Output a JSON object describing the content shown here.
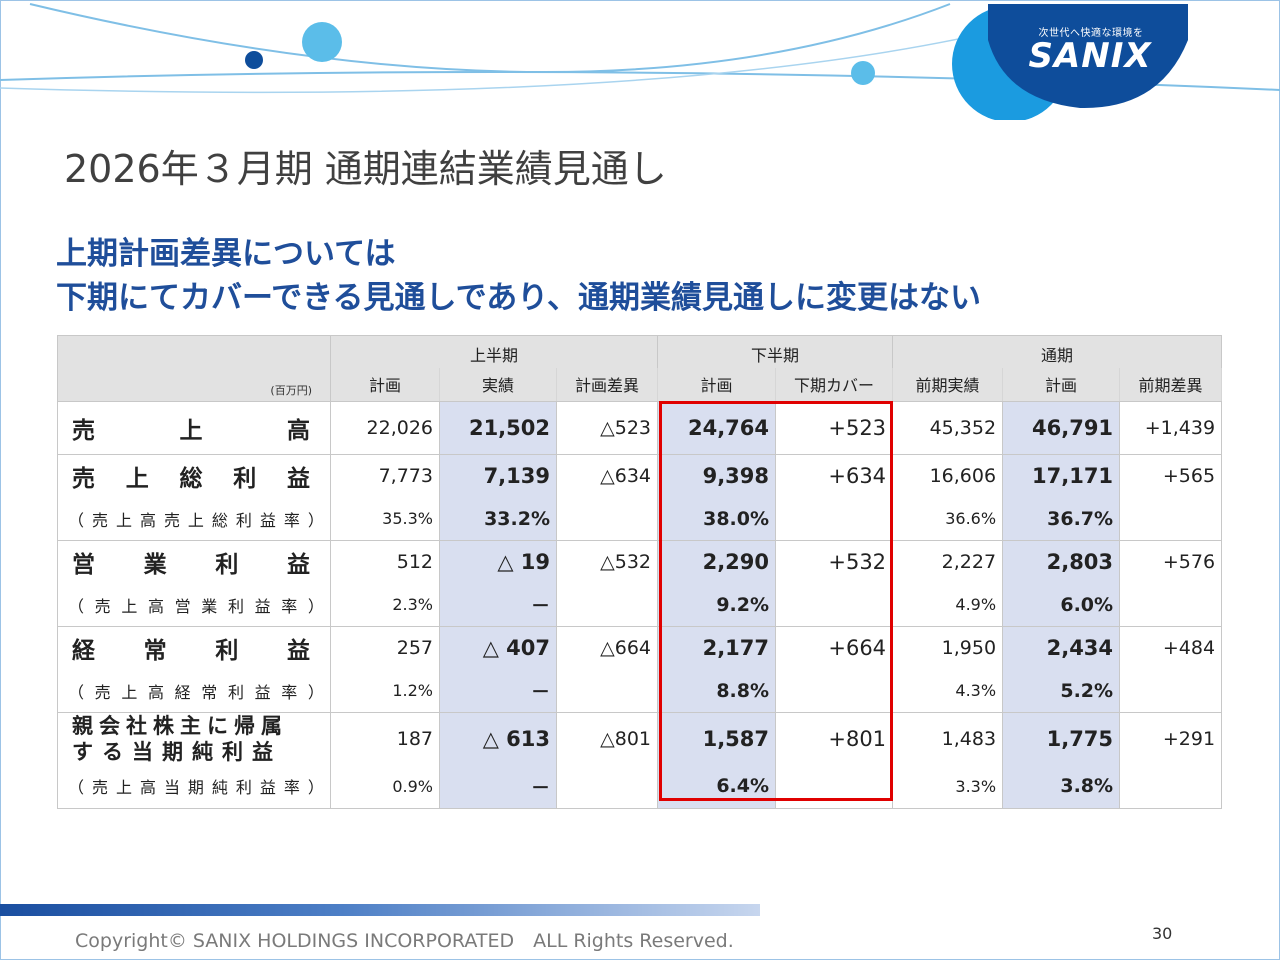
{
  "logo": {
    "tagline": "次世代へ快適な環境を",
    "text": "SANIX"
  },
  "title": "2026年３月期 通期連結業績見通し",
  "headline": {
    "line1": "上期計画差異については",
    "line2": "下期にてカバーできる見通しであり、通期業績見通しに変更はない"
  },
  "table": {
    "unit": "(百万円)",
    "groups": [
      "上半期",
      "下半期",
      "通期"
    ],
    "subheaders": [
      "計画",
      "実績",
      "計画差異",
      "計画",
      "下期カバー",
      "前期実績",
      "計画",
      "前期差異"
    ],
    "rows": [
      {
        "label_chars": [
          "売",
          "上",
          "高"
        ],
        "values": [
          "22,026",
          "21,502",
          "△523",
          "24,764",
          "+523",
          "45,352",
          "46,791",
          "+1,439"
        ]
      },
      {
        "label_chars": [
          "売",
          "上",
          "総",
          "利",
          "益"
        ],
        "values": [
          "7,773",
          "7,139",
          "△634",
          "9,398",
          "+634",
          "16,606",
          "17,171",
          "+565"
        ],
        "rate_label": "（売上高売上総利益率）",
        "rates": [
          "35.3%",
          "33.2%",
          "",
          "38.0%",
          "",
          "36.6%",
          "36.7%",
          ""
        ]
      },
      {
        "label_chars": [
          "営",
          "業",
          "利",
          "益"
        ],
        "values": [
          "512",
          "△ 19",
          "△532",
          "2,290",
          "+532",
          "2,227",
          "2,803",
          "+576"
        ],
        "rate_label": "（売上高営業利益率）",
        "rates": [
          "2.3%",
          "－",
          "",
          "9.2%",
          "",
          "4.9%",
          "6.0%",
          ""
        ]
      },
      {
        "label_chars": [
          "経",
          "常",
          "利",
          "益"
        ],
        "values": [
          "257",
          "△ 407",
          "△664",
          "2,177",
          "+664",
          "1,950",
          "2,434",
          "+484"
        ],
        "rate_label": "（売上高経常利益率）",
        "rates": [
          "1.2%",
          "－",
          "",
          "8.8%",
          "",
          "4.3%",
          "5.2%",
          ""
        ]
      },
      {
        "label_line1": "親会社株主に帰属",
        "label_line2": "する当期純利益",
        "values": [
          "187",
          "△ 613",
          "△801",
          "1,587",
          "+801",
          "1,483",
          "1,775",
          "+291"
        ],
        "rate_label": "（売上高当期純利益率）",
        "rates": [
          "0.9%",
          "－",
          "",
          "6.4%",
          "",
          "3.3%",
          "3.8%",
          ""
        ]
      }
    ]
  },
  "footer": {
    "copyright": "Copyright© SANIX HOLDINGS INCORPORATED　ALL Rights Reserved.",
    "page": "30"
  },
  "colors": {
    "accent": "#1f4e9a",
    "highlight": "#d9dff0",
    "redbox": "#e00000"
  }
}
